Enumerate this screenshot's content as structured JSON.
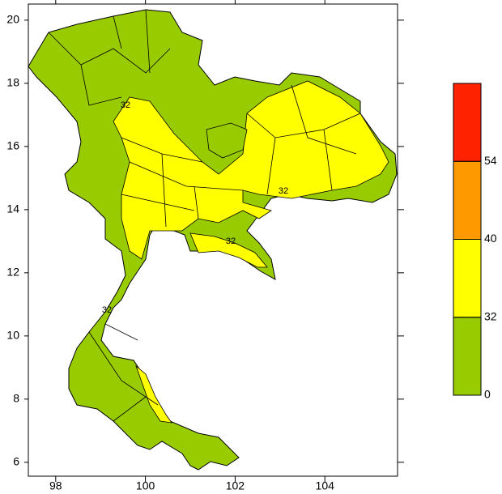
{
  "map": {
    "xlim": [
      97.39,
      105.62
    ],
    "ylim": [
      5.56,
      20.51
    ],
    "xticks": [
      98,
      100,
      102,
      104
    ],
    "yticks": [
      6,
      8,
      10,
      12,
      14,
      16,
      18,
      20
    ]
  },
  "colorbar": {
    "levels": [
      0,
      32,
      40,
      54
    ],
    "colors": [
      "#99cc00",
      "#ffff00",
      "#ff9900",
      "#ff2200"
    ]
  },
  "contour_labels": [
    "32",
    "32",
    "32",
    "32"
  ]
}
